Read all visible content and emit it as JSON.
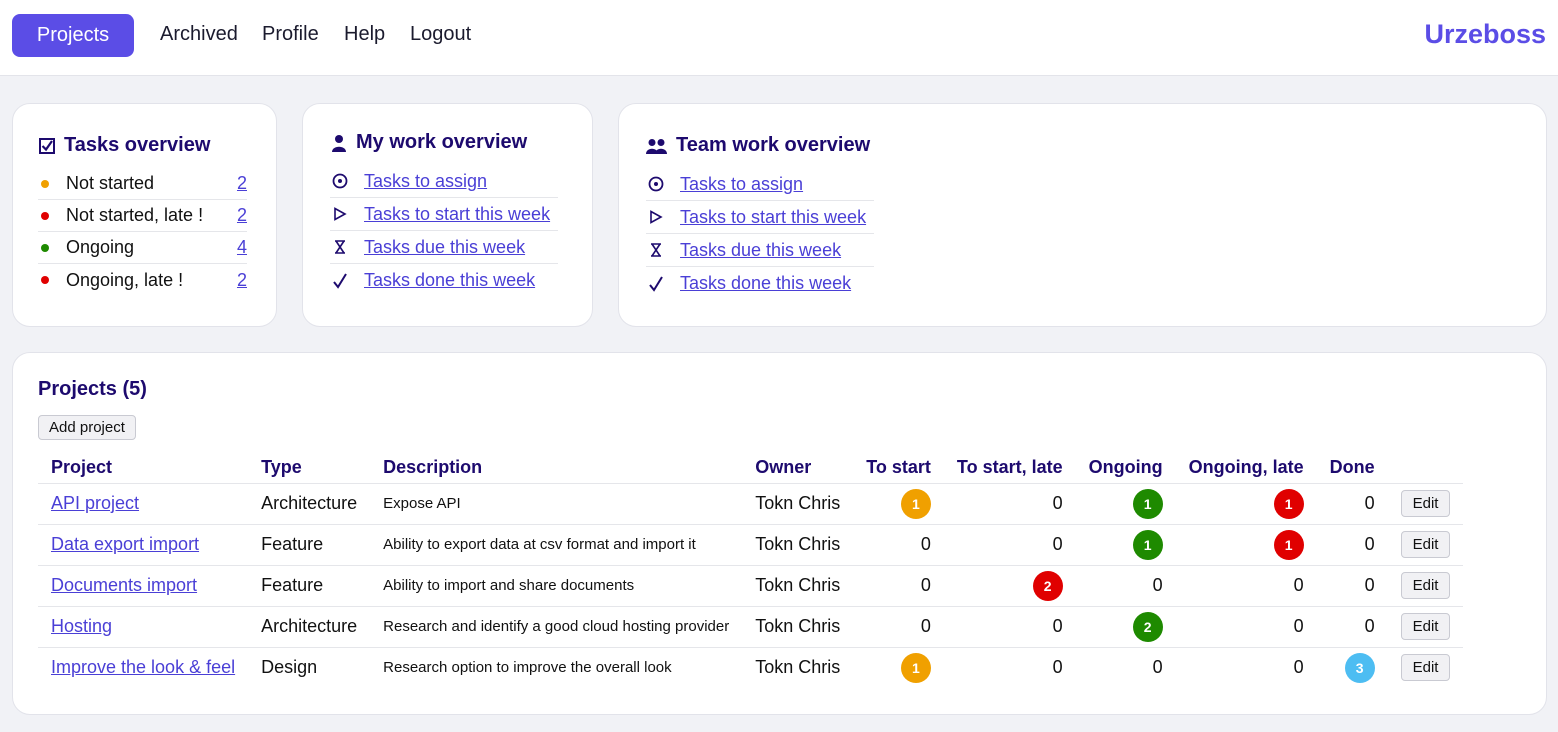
{
  "nav": {
    "items": [
      {
        "label": "Projects",
        "active": true
      },
      {
        "label": "Archived"
      },
      {
        "label": "Profile"
      },
      {
        "label": "Help"
      },
      {
        "label": "Logout"
      }
    ],
    "brand": "Urzeboss"
  },
  "tasks_overview": {
    "title": "Tasks overview",
    "icon": "checkbox-icon",
    "rows": [
      {
        "label": "Not started",
        "count": "2",
        "color": "#f0a000"
      },
      {
        "label": "Not started, late !",
        "count": "2",
        "color": "#e00000"
      },
      {
        "label": "Ongoing",
        "count": "4",
        "color": "#1e8a00"
      },
      {
        "label": "Ongoing, late !",
        "count": "2",
        "color": "#e00000"
      }
    ]
  },
  "my_work": {
    "title": "My work overview",
    "icon": "user-icon",
    "links": [
      {
        "label": "Tasks to assign",
        "icon": "target-icon"
      },
      {
        "label": "Tasks to start this week",
        "icon": "play-icon"
      },
      {
        "label": "Tasks due this week",
        "icon": "hourglass-icon"
      },
      {
        "label": "Tasks done this week",
        "icon": "check-icon"
      }
    ]
  },
  "team_work": {
    "title": "Team work overview",
    "icon": "team-icon",
    "links": [
      {
        "label": "Tasks to assign",
        "icon": "target-icon"
      },
      {
        "label": "Tasks to start this week",
        "icon": "play-icon"
      },
      {
        "label": "Tasks due this week",
        "icon": "hourglass-icon"
      },
      {
        "label": "Tasks done this week",
        "icon": "check-icon"
      }
    ]
  },
  "projects": {
    "title": "Projects (5)",
    "add_label": "Add project",
    "edit_label": "Edit",
    "columns": [
      "Project",
      "Type",
      "Description",
      "Owner",
      "To start",
      "To start, late",
      "Ongoing",
      "Ongoing, late",
      "Done"
    ],
    "badge_colors": {
      "to_start": "#f0a000",
      "to_start_late": "#e00000",
      "ongoing": "#1e8a00",
      "ongoing_late": "#e00000",
      "done": "#4dbdf2"
    },
    "rows": [
      {
        "name": "API project",
        "type": "Architecture",
        "description": "Expose API",
        "owner": "Tokn Chris",
        "to_start": 1,
        "to_start_late": 0,
        "ongoing": 1,
        "ongoing_late": 1,
        "done": 0
      },
      {
        "name": "Data export import",
        "type": "Feature",
        "description": "Ability to export data at csv format and import it",
        "owner": "Tokn Chris",
        "to_start": 0,
        "to_start_late": 0,
        "ongoing": 1,
        "ongoing_late": 1,
        "done": 0
      },
      {
        "name": "Documents import",
        "type": "Feature",
        "description": "Ability to import and share documents",
        "owner": "Tokn Chris",
        "to_start": 0,
        "to_start_late": 2,
        "ongoing": 0,
        "ongoing_late": 0,
        "done": 0
      },
      {
        "name": "Hosting",
        "type": "Architecture",
        "description": "Research and identify a good cloud hosting provider",
        "owner": "Tokn Chris",
        "to_start": 0,
        "to_start_late": 0,
        "ongoing": 2,
        "ongoing_late": 0,
        "done": 0
      },
      {
        "name": "Improve the look & feel",
        "type": "Design",
        "description": "Research option to improve the overall look",
        "owner": "Tokn Chris",
        "to_start": 1,
        "to_start_late": 0,
        "ongoing": 0,
        "ongoing_late": 0,
        "done": 3
      }
    ]
  }
}
